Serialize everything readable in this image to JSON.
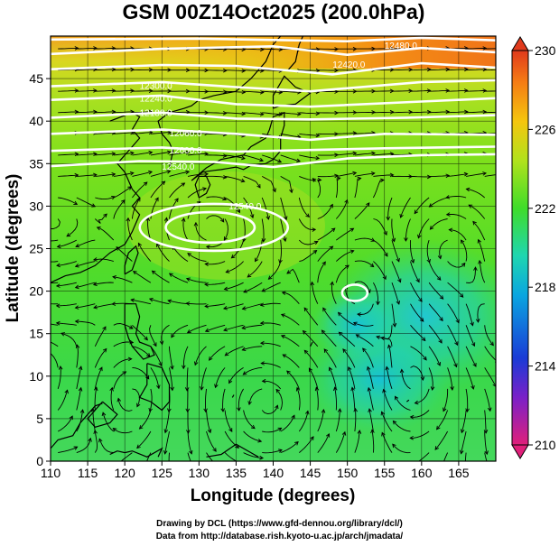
{
  "credits": {
    "line1": "Drawing by DCL (https://www.gfd-dennou.org/library/dcl/)",
    "line2": "Data from http://database.rish.kyoto-u.ac.jp/arch/jmadata/"
  },
  "colors": {
    "background": "#ffffff",
    "contour": "#ffffff",
    "coast": "#000000",
    "streamline": "#000000"
  },
  "chart_data": {
    "type": "heatmap",
    "title": "GSM 00Z14Oct2025 (200.0hPa)",
    "xlabel": "Longitude (degrees)",
    "ylabel": "Latitude  (degrees)",
    "xlim": [
      110,
      170
    ],
    "ylim": [
      0,
      50
    ],
    "xticks": [
      "110",
      "115",
      "120",
      "125",
      "130",
      "135",
      "140",
      "145",
      "150",
      "155",
      "160",
      "165"
    ],
    "yticks": [
      "0",
      "5",
      "10",
      "15",
      "20",
      "25",
      "30",
      "35",
      "40",
      "45"
    ],
    "variable": "temperature (K) with geopotential height contours and wind streamlines",
    "colorbar": {
      "range": [
        210,
        230
      ],
      "ticks": [
        "210",
        "214",
        "218",
        "222",
        "226",
        "230"
      ],
      "colors": [
        "#e0207a",
        "#8a1fb8",
        "#1a3bd6",
        "#0aa6e0",
        "#1fd6b0",
        "#3fdc2a",
        "#b0e21c",
        "#f5c60e",
        "#f57c14",
        "#e03a1c"
      ]
    },
    "temperature_field_samples": [
      {
        "lon": 160,
        "lat": 48,
        "value": 227.5
      },
      {
        "lon": 140,
        "lat": 45,
        "value": 224
      },
      {
        "lon": 130,
        "lat": 38,
        "value": 223.5
      },
      {
        "lon": 132,
        "lat": 27,
        "value": 223
      },
      {
        "lon": 120,
        "lat": 15,
        "value": 221.5
      },
      {
        "lon": 155,
        "lat": 18,
        "value": 218.5
      },
      {
        "lon": 163,
        "lat": 22,
        "value": 218.5
      },
      {
        "lon": 150,
        "lat": 5,
        "value": 220.5
      }
    ],
    "contour_labels": [
      {
        "text": "12480.0",
        "lon": 155,
        "lat": 48.5
      },
      {
        "text": "12420.0",
        "lon": 148,
        "lat": 46.3
      },
      {
        "text": "12300.0",
        "lon": 122,
        "lat": 43.8
      },
      {
        "text": "12240.0",
        "lon": 122,
        "lat": 42.3
      },
      {
        "text": "12180.0",
        "lon": 122,
        "lat": 40.6
      },
      {
        "text": "12060.0",
        "lon": 126,
        "lat": 38.2
      },
      {
        "text": "12600.0",
        "lon": 126,
        "lat": 36.2
      },
      {
        "text": "12540.0",
        "lon": 125,
        "lat": 34.3
      },
      {
        "text": "12540.0",
        "lon": 134,
        "lat": 29.6
      }
    ],
    "highs": [
      {
        "lon": 132,
        "lat": 27.5
      },
      {
        "lon": 151,
        "lat": 19.8
      }
    ]
  }
}
